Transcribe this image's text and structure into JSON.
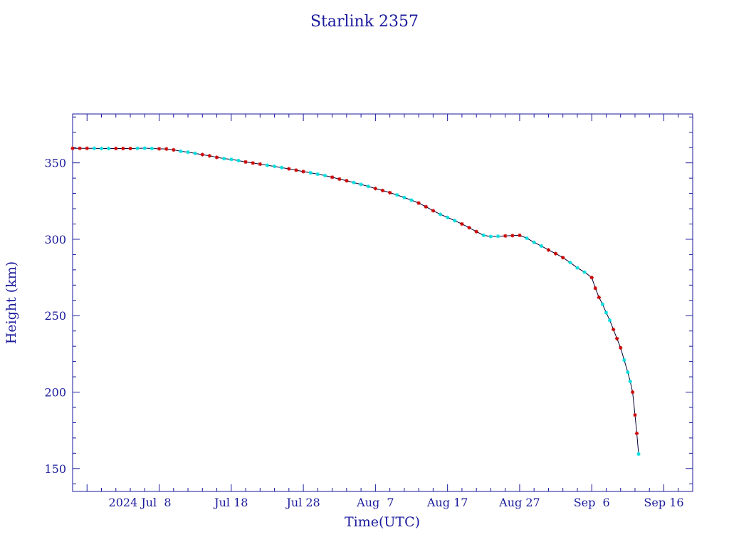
{
  "chart_data": {
    "type": "scatter",
    "title": "Starlink 2357",
    "xlabel": "Time(UTC)",
    "ylabel": "Height (km)",
    "x_range": [
      "2024-06-26",
      "2024-09-20"
    ],
    "ylim": [
      135,
      382
    ],
    "y_ticks": [
      150,
      200,
      250,
      300,
      350
    ],
    "x_ticks": [
      {
        "date": "2024-07-08",
        "label": "2024 Jul  8"
      },
      {
        "date": "2024-07-18",
        "label": "Jul 18"
      },
      {
        "date": "2024-07-28",
        "label": "Jul 28"
      },
      {
        "date": "2024-08-07",
        "label": "Aug  7"
      },
      {
        "date": "2024-08-17",
        "label": "Aug 17"
      },
      {
        "date": "2024-08-27",
        "label": "Aug 27"
      },
      {
        "date": "2024-09-06",
        "label": "Sep  6"
      },
      {
        "date": "2024-09-16",
        "label": "Sep 16"
      }
    ],
    "grid": false,
    "marker_colors": [
      "#cc0000",
      "#00dddd"
    ],
    "line_color": "#000033",
    "series": [
      {
        "points": [
          [
            "2024-06-26T00:00",
            359.5
          ],
          [
            "2024-06-27T00:00",
            359.5
          ],
          [
            "2024-06-28T00:00",
            359.5
          ],
          [
            "2024-06-29T00:00",
            359.5
          ],
          [
            "2024-06-30T00:00",
            359.4
          ],
          [
            "2024-07-01T00:00",
            359.4
          ],
          [
            "2024-07-02T00:00",
            359.4
          ],
          [
            "2024-07-03T00:00",
            359.4
          ],
          [
            "2024-07-04T00:00",
            359.4
          ],
          [
            "2024-07-05T00:00",
            359.5
          ],
          [
            "2024-07-06T00:00",
            359.6
          ],
          [
            "2024-07-07T00:00",
            359.4
          ],
          [
            "2024-07-08T00:00",
            359.2
          ],
          [
            "2024-07-09T00:00",
            359.1
          ],
          [
            "2024-07-10T00:00",
            358.5
          ],
          [
            "2024-07-11T00:00",
            357.6
          ],
          [
            "2024-07-12T00:00",
            357.0
          ],
          [
            "2024-07-13T00:00",
            356.2
          ],
          [
            "2024-07-14T00:00",
            355.4
          ],
          [
            "2024-07-15T00:00",
            354.6
          ],
          [
            "2024-07-16T00:00",
            353.6
          ],
          [
            "2024-07-17T00:00",
            352.8
          ],
          [
            "2024-07-18T00:00",
            352.3
          ],
          [
            "2024-07-19T00:00",
            351.5
          ],
          [
            "2024-07-20T00:00",
            350.6
          ],
          [
            "2024-07-21T00:00",
            349.9
          ],
          [
            "2024-07-22T00:00",
            349.2
          ],
          [
            "2024-07-23T00:00",
            348.4
          ],
          [
            "2024-07-24T00:00",
            347.7
          ],
          [
            "2024-07-25T00:00",
            346.9
          ],
          [
            "2024-07-26T00:00",
            346.1
          ],
          [
            "2024-07-27T00:00",
            345.2
          ],
          [
            "2024-07-28T00:00",
            344.3
          ],
          [
            "2024-07-29T00:00",
            343.5
          ],
          [
            "2024-07-30T00:00",
            342.6
          ],
          [
            "2024-07-31T00:00",
            341.7
          ],
          [
            "2024-08-01T00:00",
            340.6
          ],
          [
            "2024-08-02T00:00",
            339.4
          ],
          [
            "2024-08-03T00:00",
            338.3
          ],
          [
            "2024-08-04T00:00",
            337.1
          ],
          [
            "2024-08-05T00:00",
            335.9
          ],
          [
            "2024-08-06T00:00",
            334.6
          ],
          [
            "2024-08-07T00:00",
            333.2
          ],
          [
            "2024-08-08T00:00",
            331.9
          ],
          [
            "2024-08-09T00:00",
            330.5
          ],
          [
            "2024-08-10T00:00",
            329.0
          ],
          [
            "2024-08-11T00:00",
            327.3
          ],
          [
            "2024-08-12T00:00",
            325.6
          ],
          [
            "2024-08-13T00:00",
            323.7
          ],
          [
            "2024-08-14T00:00",
            321.3
          ],
          [
            "2024-08-15T00:00",
            318.7
          ],
          [
            "2024-08-16T00:00",
            316.3
          ],
          [
            "2024-08-17T00:00",
            314.3
          ],
          [
            "2024-08-18T00:00",
            312.2
          ],
          [
            "2024-08-19T00:00",
            310.0
          ],
          [
            "2024-08-20T00:00",
            307.6
          ],
          [
            "2024-08-21T00:00",
            305.0
          ],
          [
            "2024-08-22T00:00",
            302.6
          ],
          [
            "2024-08-23T00:00",
            301.8
          ],
          [
            "2024-08-24T00:00",
            302.0
          ],
          [
            "2024-08-25T00:00",
            302.2
          ],
          [
            "2024-08-26T00:00",
            302.4
          ],
          [
            "2024-08-27T00:00",
            302.6
          ],
          [
            "2024-08-28T00:00",
            300.7
          ],
          [
            "2024-08-29T00:00",
            298.0
          ],
          [
            "2024-08-30T00:00",
            295.6
          ],
          [
            "2024-08-31T00:00",
            293.0
          ],
          [
            "2024-09-01T00:00",
            290.6
          ],
          [
            "2024-09-02T00:00",
            288.0
          ],
          [
            "2024-09-03T00:00",
            284.8
          ],
          [
            "2024-09-04T00:00",
            281.3
          ],
          [
            "2024-09-05T00:00",
            278.5
          ],
          [
            "2024-09-06T00:00",
            275.0
          ],
          [
            "2024-09-06T12:00",
            268.0
          ],
          [
            "2024-09-07T00:00",
            262.0
          ],
          [
            "2024-09-07T12:00",
            257.5
          ],
          [
            "2024-09-08T00:00",
            252.0
          ],
          [
            "2024-09-08T12:00",
            247.0
          ],
          [
            "2024-09-09T00:00",
            241.0
          ],
          [
            "2024-09-09T12:00",
            235.0
          ],
          [
            "2024-09-10T00:00",
            229.0
          ],
          [
            "2024-09-10T12:00",
            221.0
          ],
          [
            "2024-09-11T00:00",
            213.0
          ],
          [
            "2024-09-11T08:00",
            207.0
          ],
          [
            "2024-09-11T16:00",
            200.0
          ],
          [
            "2024-09-12T00:00",
            185.0
          ],
          [
            "2024-09-12T06:00",
            173.0
          ],
          [
            "2024-09-12T12:00",
            159.5
          ]
        ]
      }
    ]
  }
}
